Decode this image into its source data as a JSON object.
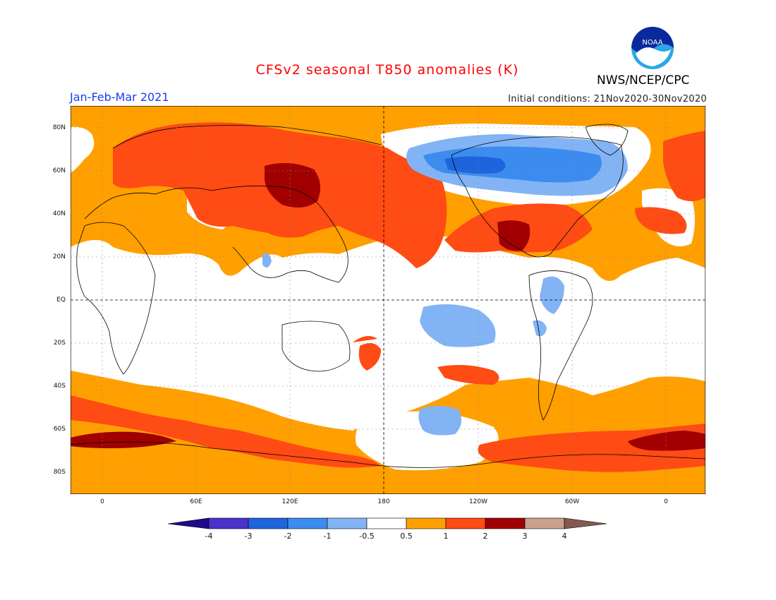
{
  "header": {
    "title": "CFSv2 seasonal T850 anomalies (K)",
    "period": "Jan-Feb-Mar 2021",
    "initial_conditions": "Initial conditions: 21Nov2020-30Nov2020",
    "agency": "NWS/NCEP/CPC",
    "logo_text": "NOAA"
  },
  "axes": {
    "lat_labels": [
      "80N",
      "60N",
      "40N",
      "20N",
      "EQ",
      "20S",
      "40S",
      "60S",
      "80S"
    ],
    "lon_labels": [
      "0",
      "60E",
      "120E",
      "180",
      "120W",
      "60W",
      "0"
    ]
  },
  "colorbar": {
    "labels": [
      "-4",
      "-3",
      "-2",
      "-1",
      "-0.5",
      "0.5",
      "1",
      "2",
      "3",
      "4"
    ],
    "colors": [
      "#1e0a8c",
      "#4b32c8",
      "#1e64dc",
      "#3c8cf0",
      "#82b4f5",
      "#ffffff",
      "#ffa000",
      "#ff4b14",
      "#a00000",
      "#c8a08c",
      "#825a50"
    ]
  },
  "palette": {
    "warm1": "#ffa000",
    "warm2": "#ff4b14",
    "warm3": "#a00000",
    "cool1": "#82b4f5",
    "cool2": "#3c8cf0",
    "cool3": "#1e64dc"
  }
}
